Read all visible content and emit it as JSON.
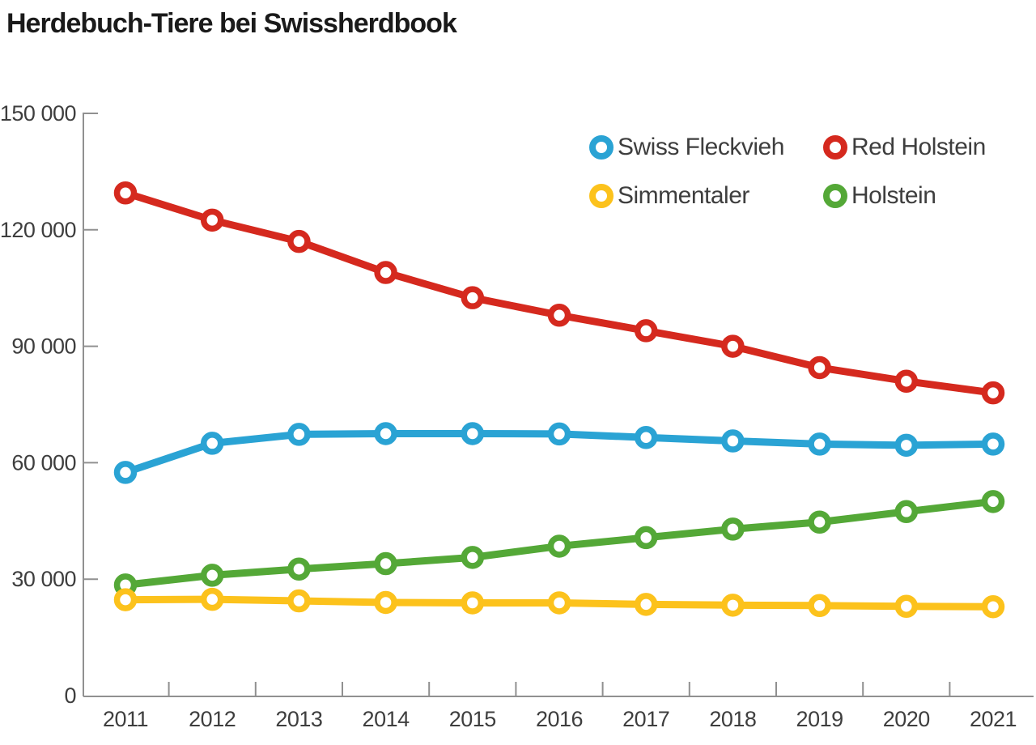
{
  "title": "Herdebuch-Tiere bei Swissherdbook",
  "chart_data": {
    "type": "line",
    "x": [
      2011,
      2012,
      2013,
      2014,
      2015,
      2016,
      2017,
      2018,
      2019,
      2020,
      2021
    ],
    "series": [
      {
        "name": "Swiss Fleckvieh",
        "color": "#2aa3d4",
        "values": [
          57500,
          65000,
          67300,
          67500,
          67500,
          67400,
          66500,
          65600,
          64800,
          64500,
          64800
        ]
      },
      {
        "name": "Red Holstein",
        "color": "#d5291e",
        "values": [
          129500,
          122500,
          117000,
          109000,
          102500,
          98000,
          94000,
          90000,
          84500,
          81000,
          78000
        ]
      },
      {
        "name": "Simmentaler",
        "color": "#fcc21c",
        "values": [
          24700,
          24800,
          24400,
          24000,
          23900,
          23900,
          23500,
          23300,
          23200,
          23000,
          22900
        ]
      },
      {
        "name": "Holstein",
        "color": "#54a837",
        "values": [
          28500,
          31000,
          32600,
          34000,
          35600,
          38500,
          40700,
          42900,
          44700,
          47400,
          50000
        ]
      }
    ],
    "draw_order": [
      0,
      1,
      3,
      2
    ],
    "ylim": [
      0,
      150000
    ],
    "y_ticks": [
      0,
      30000,
      60000,
      90000,
      120000,
      150000
    ],
    "y_tick_labels": [
      "0",
      "30 000",
      "60 000",
      "90 000",
      "120 000",
      "150 000"
    ],
    "xlabel": "",
    "ylabel": "",
    "grid": false,
    "legend_position": "top-right",
    "marker_style": "open-circle",
    "axis_color": "#909090",
    "label_color": "#3e3e3e"
  }
}
